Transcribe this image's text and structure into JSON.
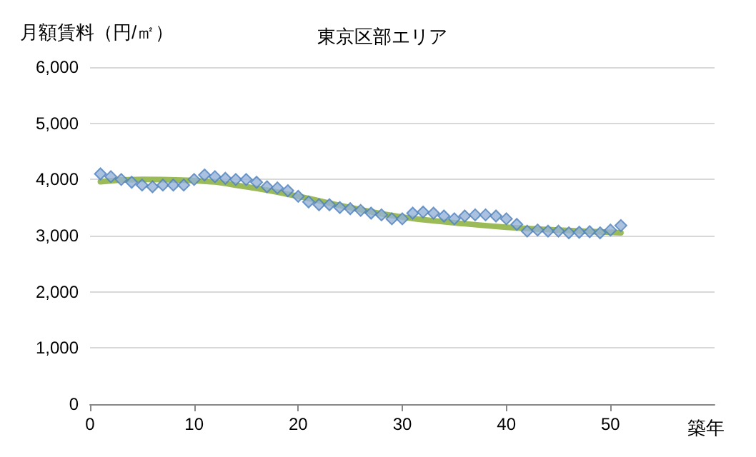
{
  "chart_data": {
    "type": "scatter",
    "title": "東京区部エリア",
    "ylabel": "月額賃料（円/㎡）",
    "xlabel": "築年",
    "xlim": [
      0,
      60
    ],
    "xticks": [
      0,
      10,
      20,
      30,
      40,
      50
    ],
    "ylim": [
      0,
      6000
    ],
    "yticks": [
      0,
      {
        "value": 1000,
        "label": "1,000"
      },
      {
        "value": 2000,
        "label": "2,000"
      },
      {
        "value": 3000,
        "label": "3,000"
      },
      {
        "value": 4000,
        "label": "4,000"
      },
      {
        "value": 5000,
        "label": "5,000"
      },
      {
        "value": 6000,
        "label": "6,000"
      }
    ],
    "grid": "y",
    "series": [
      {
        "color": "#95b3d7",
        "marker": "diamond",
        "x": [
          1,
          2,
          3,
          4,
          5,
          6,
          7,
          8,
          9,
          10,
          11,
          12,
          13,
          14,
          15,
          16,
          17,
          18,
          19,
          20,
          21,
          22,
          23,
          24,
          25,
          26,
          27,
          28,
          29,
          30,
          31,
          32,
          33,
          34,
          35,
          36,
          37,
          38,
          39,
          40,
          41,
          42,
          43,
          44,
          45,
          46,
          47,
          48,
          49,
          50,
          51
        ],
        "values": [
          4100,
          4050,
          4000,
          3950,
          3900,
          3870,
          3900,
          3900,
          3900,
          4000,
          4080,
          4050,
          4020,
          4000,
          4000,
          3950,
          3870,
          3850,
          3800,
          3700,
          3600,
          3550,
          3550,
          3500,
          3480,
          3450,
          3400,
          3370,
          3300,
          3300,
          3400,
          3420,
          3400,
          3350,
          3300,
          3350,
          3370,
          3370,
          3350,
          3300,
          3200,
          3080,
          3100,
          3080,
          3080,
          3050,
          3060,
          3070,
          3050,
          3100,
          3180
        ]
      },
      {
        "type": "line",
        "marker": "none",
        "color": "#9bbb59",
        "x": [
          1,
          5,
          10,
          15,
          20,
          25,
          30,
          35,
          40,
          45,
          51
        ],
        "values": [
          3960,
          4000,
          3980,
          3870,
          3700,
          3500,
          3330,
          3230,
          3150,
          3100,
          3050
        ]
      }
    ]
  }
}
